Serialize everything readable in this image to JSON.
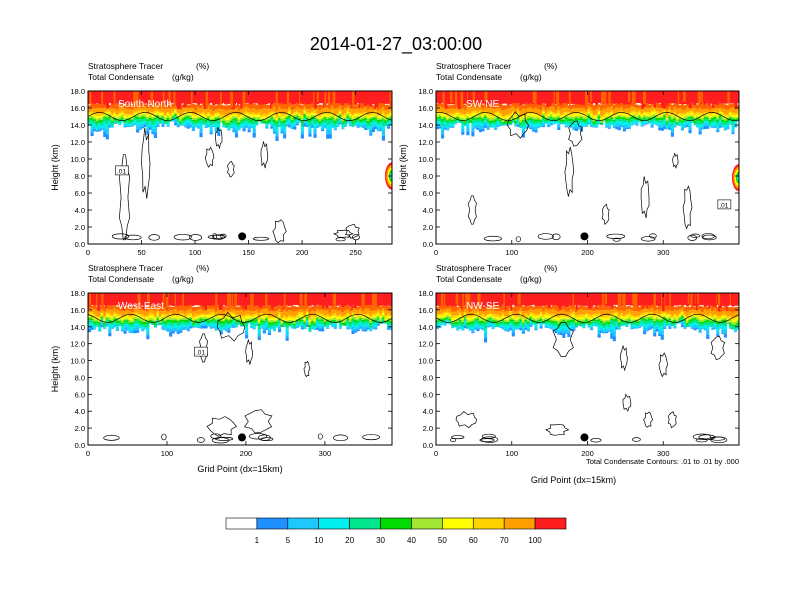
{
  "title": "2014-01-27_03:00:00",
  "colors": {
    "bands": [
      "#ffffff",
      "#1e90ff",
      "#1ec8ff",
      "#00f0f0",
      "#00e68c",
      "#00dc00",
      "#a0e632",
      "#ffff00",
      "#ffd200",
      "#ffa000",
      "#ff6400",
      "#ff1e1e"
    ]
  },
  "colorbar": {
    "labels": [
      "1",
      "5",
      "10",
      "20",
      "30",
      "40",
      "50",
      "60",
      "70",
      "100"
    ]
  },
  "footnote": "Total Condensate Contours: .01 to .01 by .000",
  "chart_data": [
    {
      "type": "heatmap",
      "header_left": "Stratosphere Tracer",
      "header_left_units": "(%)",
      "header_left2": "Total Condensate",
      "header_left2_units": "(g/kg)",
      "cross_section": "South-North",
      "ylabel": "Height (km)",
      "xlabel": "",
      "xlim": [
        0,
        284
      ],
      "ylim": [
        0,
        18
      ],
      "x_ticks": [
        "0",
        "50",
        "100",
        "150",
        "200",
        "250"
      ],
      "y_ticks": [
        "0.0",
        "2.0",
        "4.0",
        "6.0",
        "8.0",
        "10.0",
        "12.0",
        "14.0",
        "16.0",
        "18.0"
      ],
      "contour_label": ".01",
      "marker_x": 144
    },
    {
      "type": "heatmap",
      "header_left": "Stratosphere Tracer",
      "header_left_units": "(%)",
      "header_left2": "Total Condensate",
      "header_left2_units": "(g/kg)",
      "cross_section": "SW-NE",
      "ylabel": "Height (km)",
      "xlabel": "",
      "xlim": [
        0,
        400
      ],
      "ylim": [
        0,
        18
      ],
      "x_ticks": [
        "0",
        "100",
        "200",
        "300"
      ],
      "y_ticks": [
        "0.0",
        "2.0",
        "4.0",
        "6.0",
        "8.0",
        "10.0",
        "12.0",
        "14.0",
        "16.0",
        "18.0"
      ],
      "contour_label": ".01",
      "marker_x": 196
    },
    {
      "type": "heatmap",
      "header_left": "Stratosphere Tracer",
      "header_left_units": "(%)",
      "header_left2": "Total Condensate",
      "header_left2_units": "(g/kg)",
      "cross_section": "West-East",
      "ylabel": "Height (km)",
      "xlabel": "Grid Point (dx=15km)",
      "xlim": [
        0,
        385
      ],
      "ylim": [
        0,
        18
      ],
      "x_ticks": [
        "0",
        "100",
        "200",
        "300"
      ],
      "y_ticks": [
        "0.0",
        "2.0",
        "4.0",
        "6.0",
        "8.0",
        "10.0",
        "12.0",
        "14.0",
        "16.0",
        "18.0"
      ],
      "contour_label": ".01",
      "marker_x": 195
    },
    {
      "type": "heatmap",
      "header_left": "Stratosphere Tracer",
      "header_left_units": "(%)",
      "header_left2": "Total Condensate",
      "header_left2_units": "(g/kg)",
      "cross_section": "NW-SE",
      "ylabel": "",
      "xlabel": "Grid Point (dx=15km)",
      "xlim": [
        0,
        400
      ],
      "ylim": [
        0,
        18
      ],
      "x_ticks": [
        "0",
        "100",
        "200",
        "300"
      ],
      "y_ticks": [
        "0.0",
        "2.0",
        "4.0",
        "6.0",
        "8.0",
        "10.0",
        "12.0",
        "14.0",
        "16.0",
        "18.0"
      ],
      "contour_label": "",
      "marker_x": 196
    }
  ]
}
